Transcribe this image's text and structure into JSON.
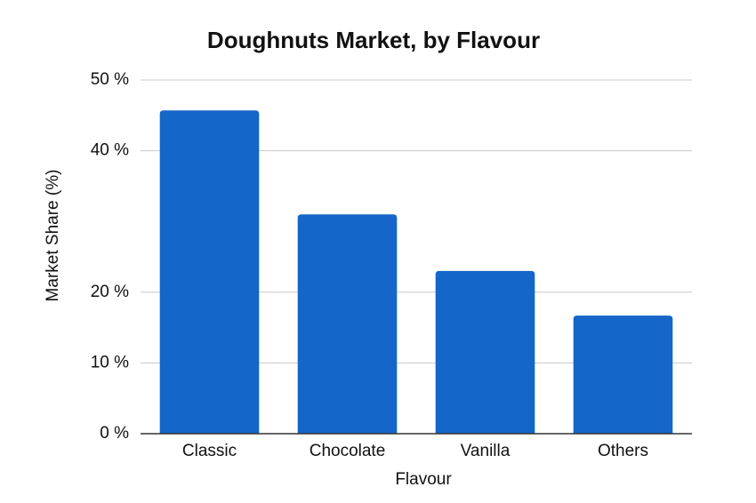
{
  "chart_data": {
    "type": "bar",
    "title": "Doughnuts Market, by Flavour",
    "x_label": "Flavour",
    "y_label": "Market Share (%)",
    "categories": [
      "Classic",
      "Chocolate",
      "Vanilla",
      "Others"
    ],
    "values": [
      45.7,
      31,
      23,
      16.7
    ],
    "color": "#1466c8",
    "ylim": [
      0,
      50
    ],
    "yticks": [
      {
        "value": 0,
        "label": "0 %"
      },
      {
        "value": 10,
        "label": "10 %"
      },
      {
        "value": 20,
        "label": "20 %"
      },
      {
        "value": 40,
        "label": "40 %"
      },
      {
        "value": 50,
        "label": "50 %"
      }
    ],
    "grid": true
  }
}
